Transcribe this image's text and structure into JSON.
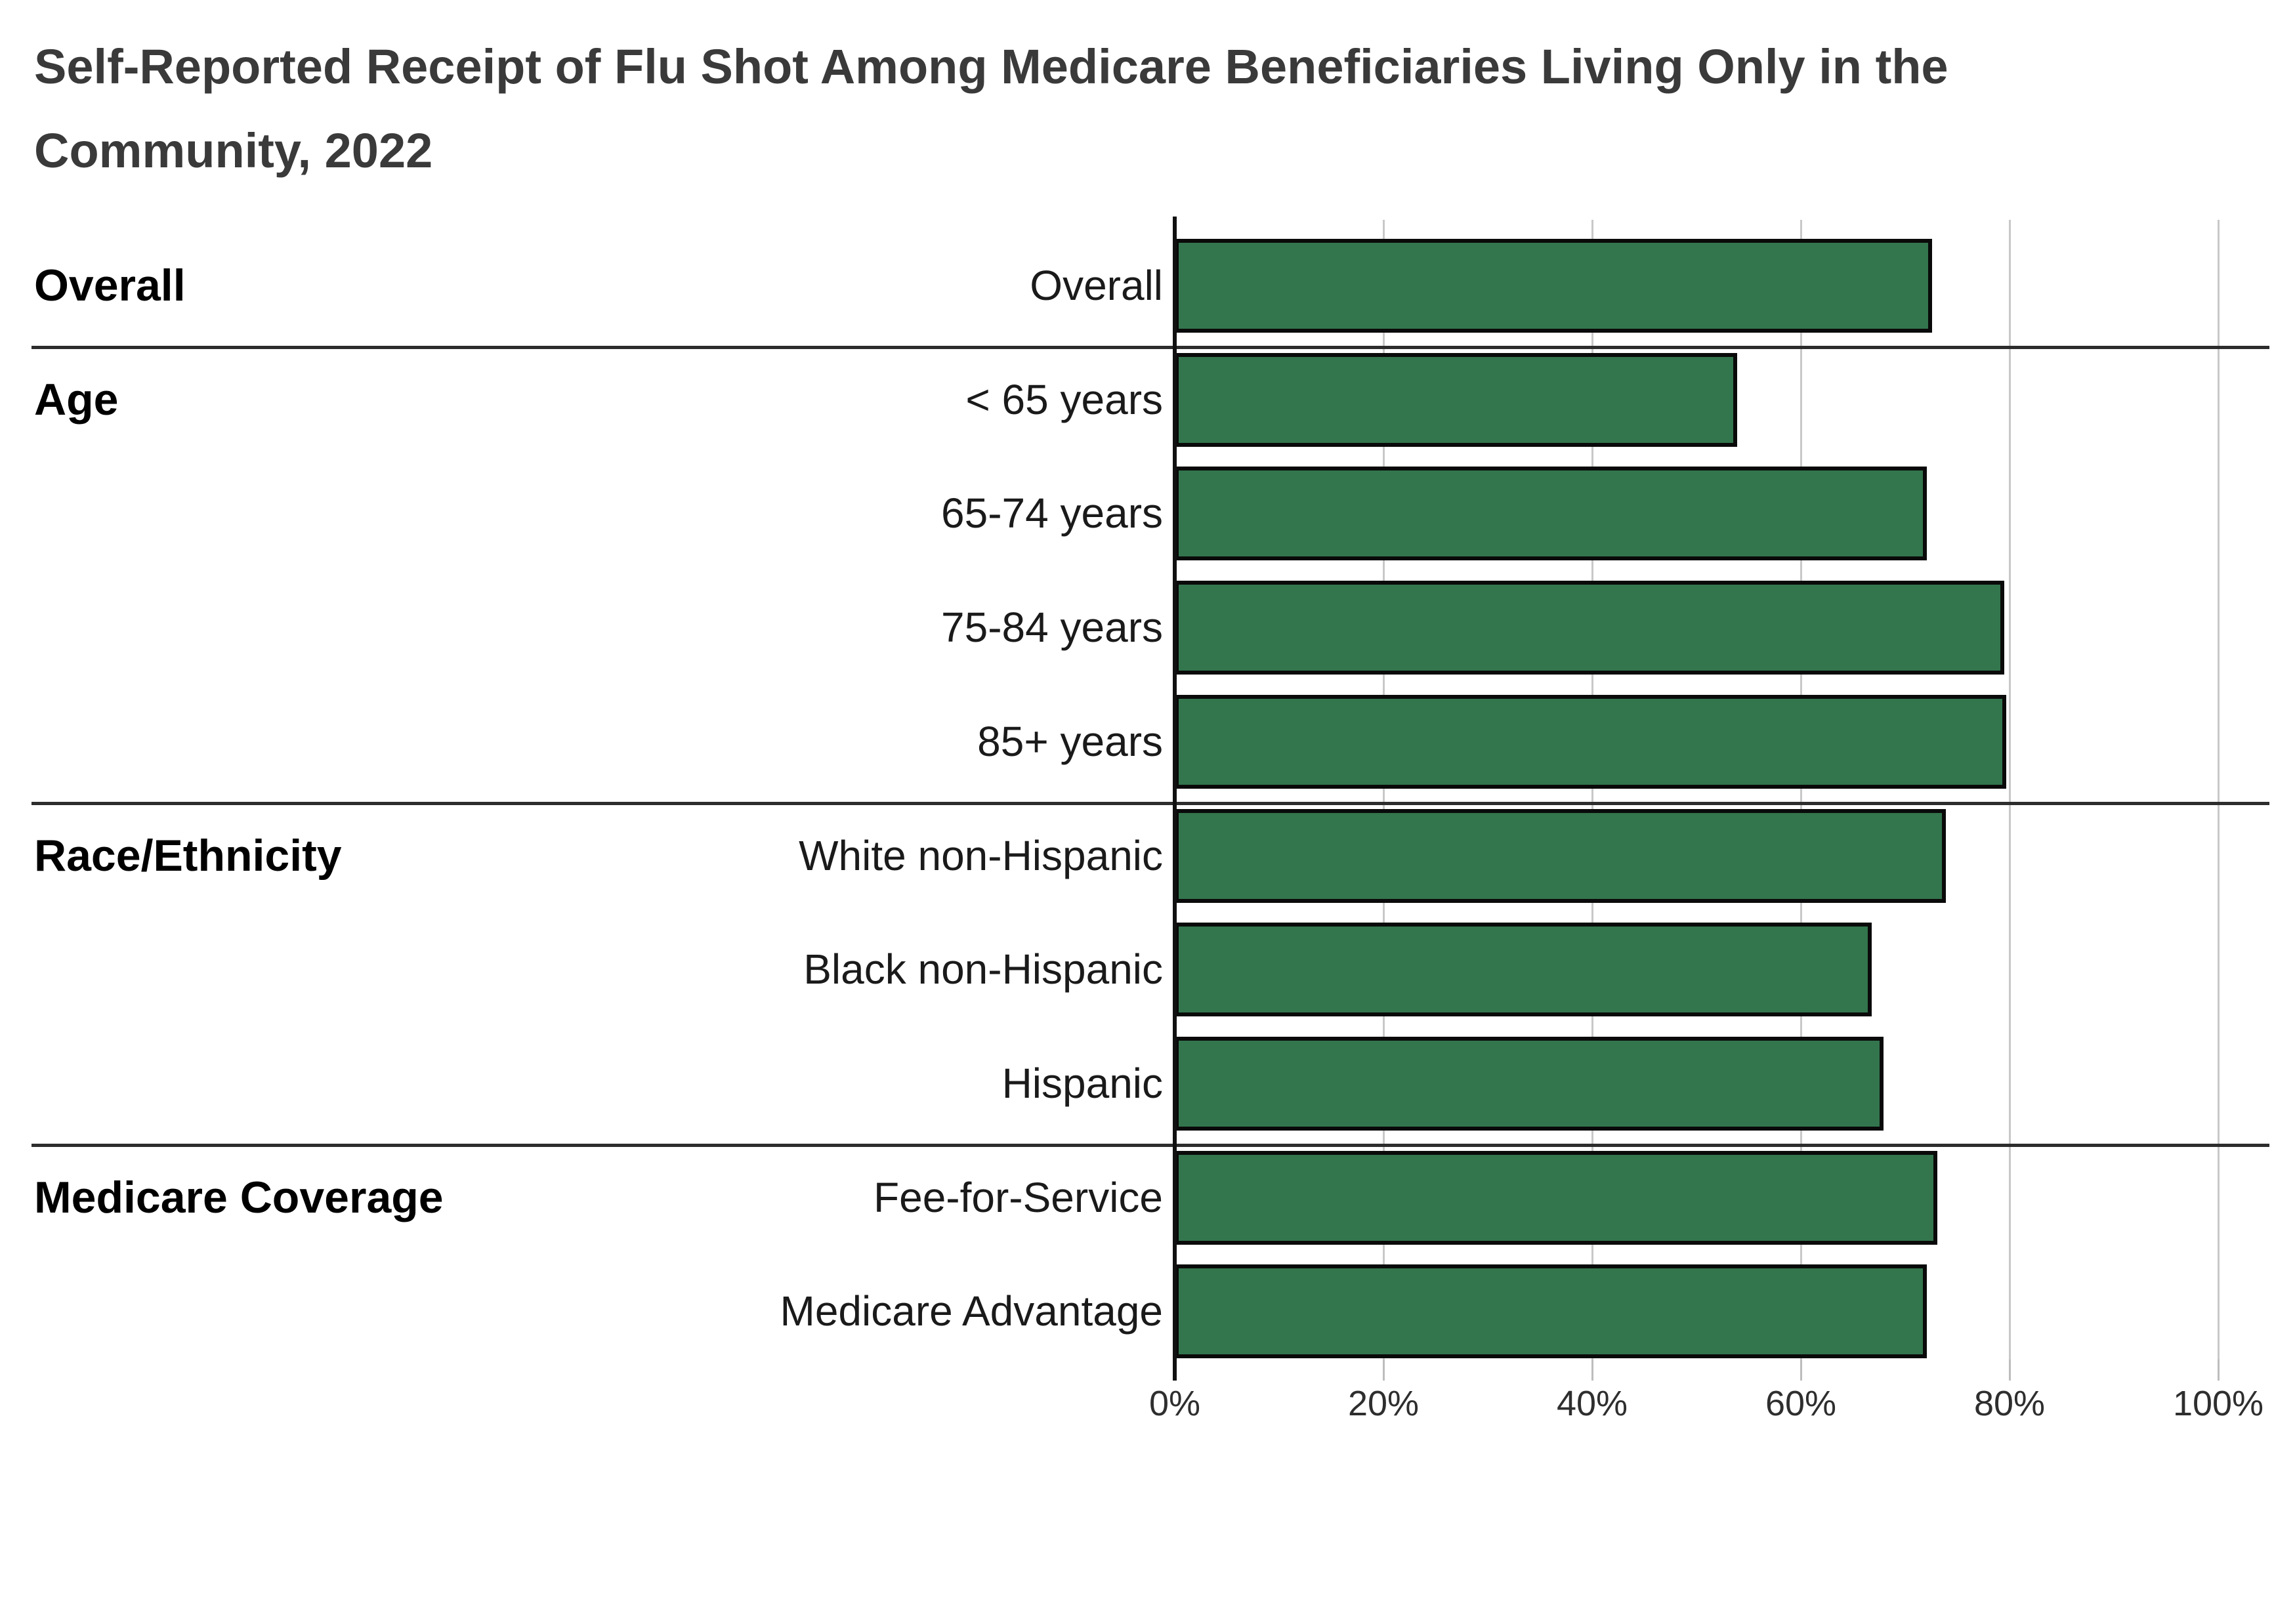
{
  "title": {
    "line1": "Self-Reported Receipt of Flu Shot Among Medicare Beneficiaries Living Only in the",
    "line2": "Community, 2022"
  },
  "chart_data": {
    "type": "bar",
    "orientation": "horizontal",
    "title": "Self-Reported Receipt of Flu Shot Among Medicare Beneficiaries Living Only in the Community, 2022",
    "unit": "percent",
    "xlim": [
      0,
      100
    ],
    "x_ticks": [
      "0%",
      "20%",
      "40%",
      "60%",
      "80%",
      "100%"
    ],
    "grid": true,
    "legend": "none",
    "bar_color": "#33754d",
    "bar_border_color": "#0a0a0a",
    "groups": [
      {
        "group": "Overall",
        "items": [
          {
            "label": "Overall",
            "value": 72.6
          }
        ]
      },
      {
        "group": "Age",
        "items": [
          {
            "label": "< 65 years",
            "value": 53.9
          },
          {
            "label": "65-74 years",
            "value": 72.1
          },
          {
            "label": "75-84 years",
            "value": 79.5
          },
          {
            "label": "85+ years",
            "value": 79.7
          }
        ]
      },
      {
        "group": "Race/Ethnicity",
        "items": [
          {
            "label": "White non-Hispanic",
            "value": 73.9
          },
          {
            "label": "Black non-Hispanic",
            "value": 66.8
          },
          {
            "label": "Hispanic",
            "value": 67.9
          }
        ]
      },
      {
        "group": "Medicare Coverage",
        "items": [
          {
            "label": "Fee-for-Service",
            "value": 73.1
          },
          {
            "label": "Medicare Advantage",
            "value": 72.1
          }
        ]
      }
    ]
  }
}
